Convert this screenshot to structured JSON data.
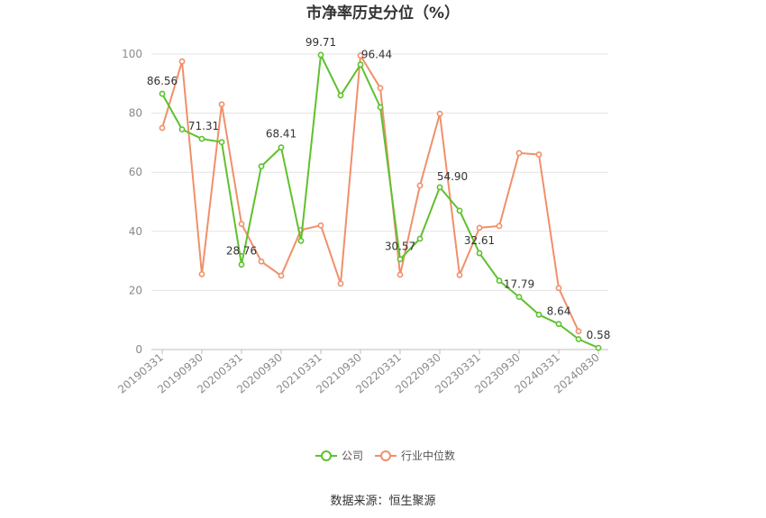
{
  "chart_data": {
    "type": "line",
    "title": "市净率历史分位（%）",
    "source": "数据来源：恒生聚源",
    "ylim": [
      0,
      100
    ],
    "yticks": [
      0,
      20,
      40,
      60,
      80,
      100
    ],
    "x": [
      "20190331",
      "20190630",
      "20190930",
      "20191231",
      "20200331",
      "20200630",
      "20200930",
      "20201231",
      "20210331",
      "20210630",
      "20210930",
      "20211231",
      "20220331",
      "20220630",
      "20220930",
      "20221231",
      "20230331",
      "20230630",
      "20230930",
      "20231231",
      "20240331",
      "20240630",
      "20240830"
    ],
    "xtick_labels": [
      "20190331",
      "20190930",
      "20200331",
      "20200930",
      "20210331",
      "20210930",
      "20220331",
      "20220930",
      "20230331",
      "20230930",
      "20240331",
      "20240830"
    ],
    "grid": true,
    "legend_position": "bottom",
    "series": [
      {
        "name": "公司",
        "color": "#5ec12e",
        "values": [
          86.56,
          74.5,
          71.31,
          70.2,
          28.76,
          62.0,
          68.41,
          36.8,
          99.71,
          86.0,
          96.44,
          82.0,
          30.57,
          37.5,
          54.9,
          47.0,
          32.61,
          23.3,
          17.79,
          11.8,
          8.64,
          3.5,
          0.58
        ],
        "labeled": [
          0,
          2,
          4,
          6,
          8,
          10,
          12,
          14,
          16,
          18,
          20,
          22
        ]
      },
      {
        "name": "行业中位数",
        "color": "#f0906a",
        "values": [
          75.0,
          97.5,
          25.5,
          83.0,
          42.5,
          29.8,
          25.0,
          40.5,
          42.0,
          22.3,
          99.5,
          88.5,
          25.3,
          55.5,
          79.8,
          25.2,
          41.2,
          41.8,
          66.5,
          66.0,
          20.8,
          6.2,
          null
        ]
      }
    ]
  }
}
